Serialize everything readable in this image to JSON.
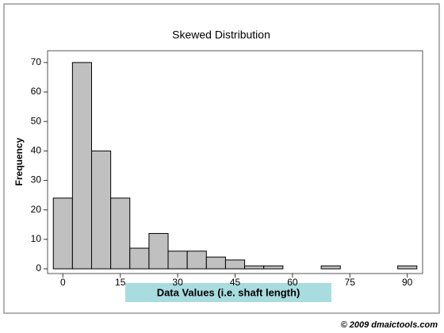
{
  "chart_data": {
    "type": "histogram",
    "title": "Skewed Distribution",
    "x_label": "Data Values (i.e. shaft length)",
    "y_label": "Frequency",
    "copyright": "© 2009 dmaictools.com",
    "bins": [
      -2.5,
      2.5,
      7.5,
      12.5,
      17.5,
      22.5,
      27.5,
      32.5,
      37.5,
      42.5,
      47.5,
      52.5,
      57.5,
      62.5,
      67.5,
      72.5,
      77.5,
      82.5,
      87.5,
      92.5
    ],
    "counts": [
      24,
      70,
      40,
      24,
      7,
      12,
      6,
      6,
      4,
      3,
      1,
      1,
      0,
      0,
      1,
      0,
      0,
      0,
      1
    ],
    "color": "#c0c0c0",
    "xlim": [
      -4,
      94
    ],
    "xticks": [
      0,
      15,
      30,
      45,
      60,
      75,
      90
    ],
    "ylim": [
      -1.6,
      74
    ],
    "yticks": [
      0,
      10,
      20,
      30,
      40,
      50,
      60,
      70
    ]
  }
}
